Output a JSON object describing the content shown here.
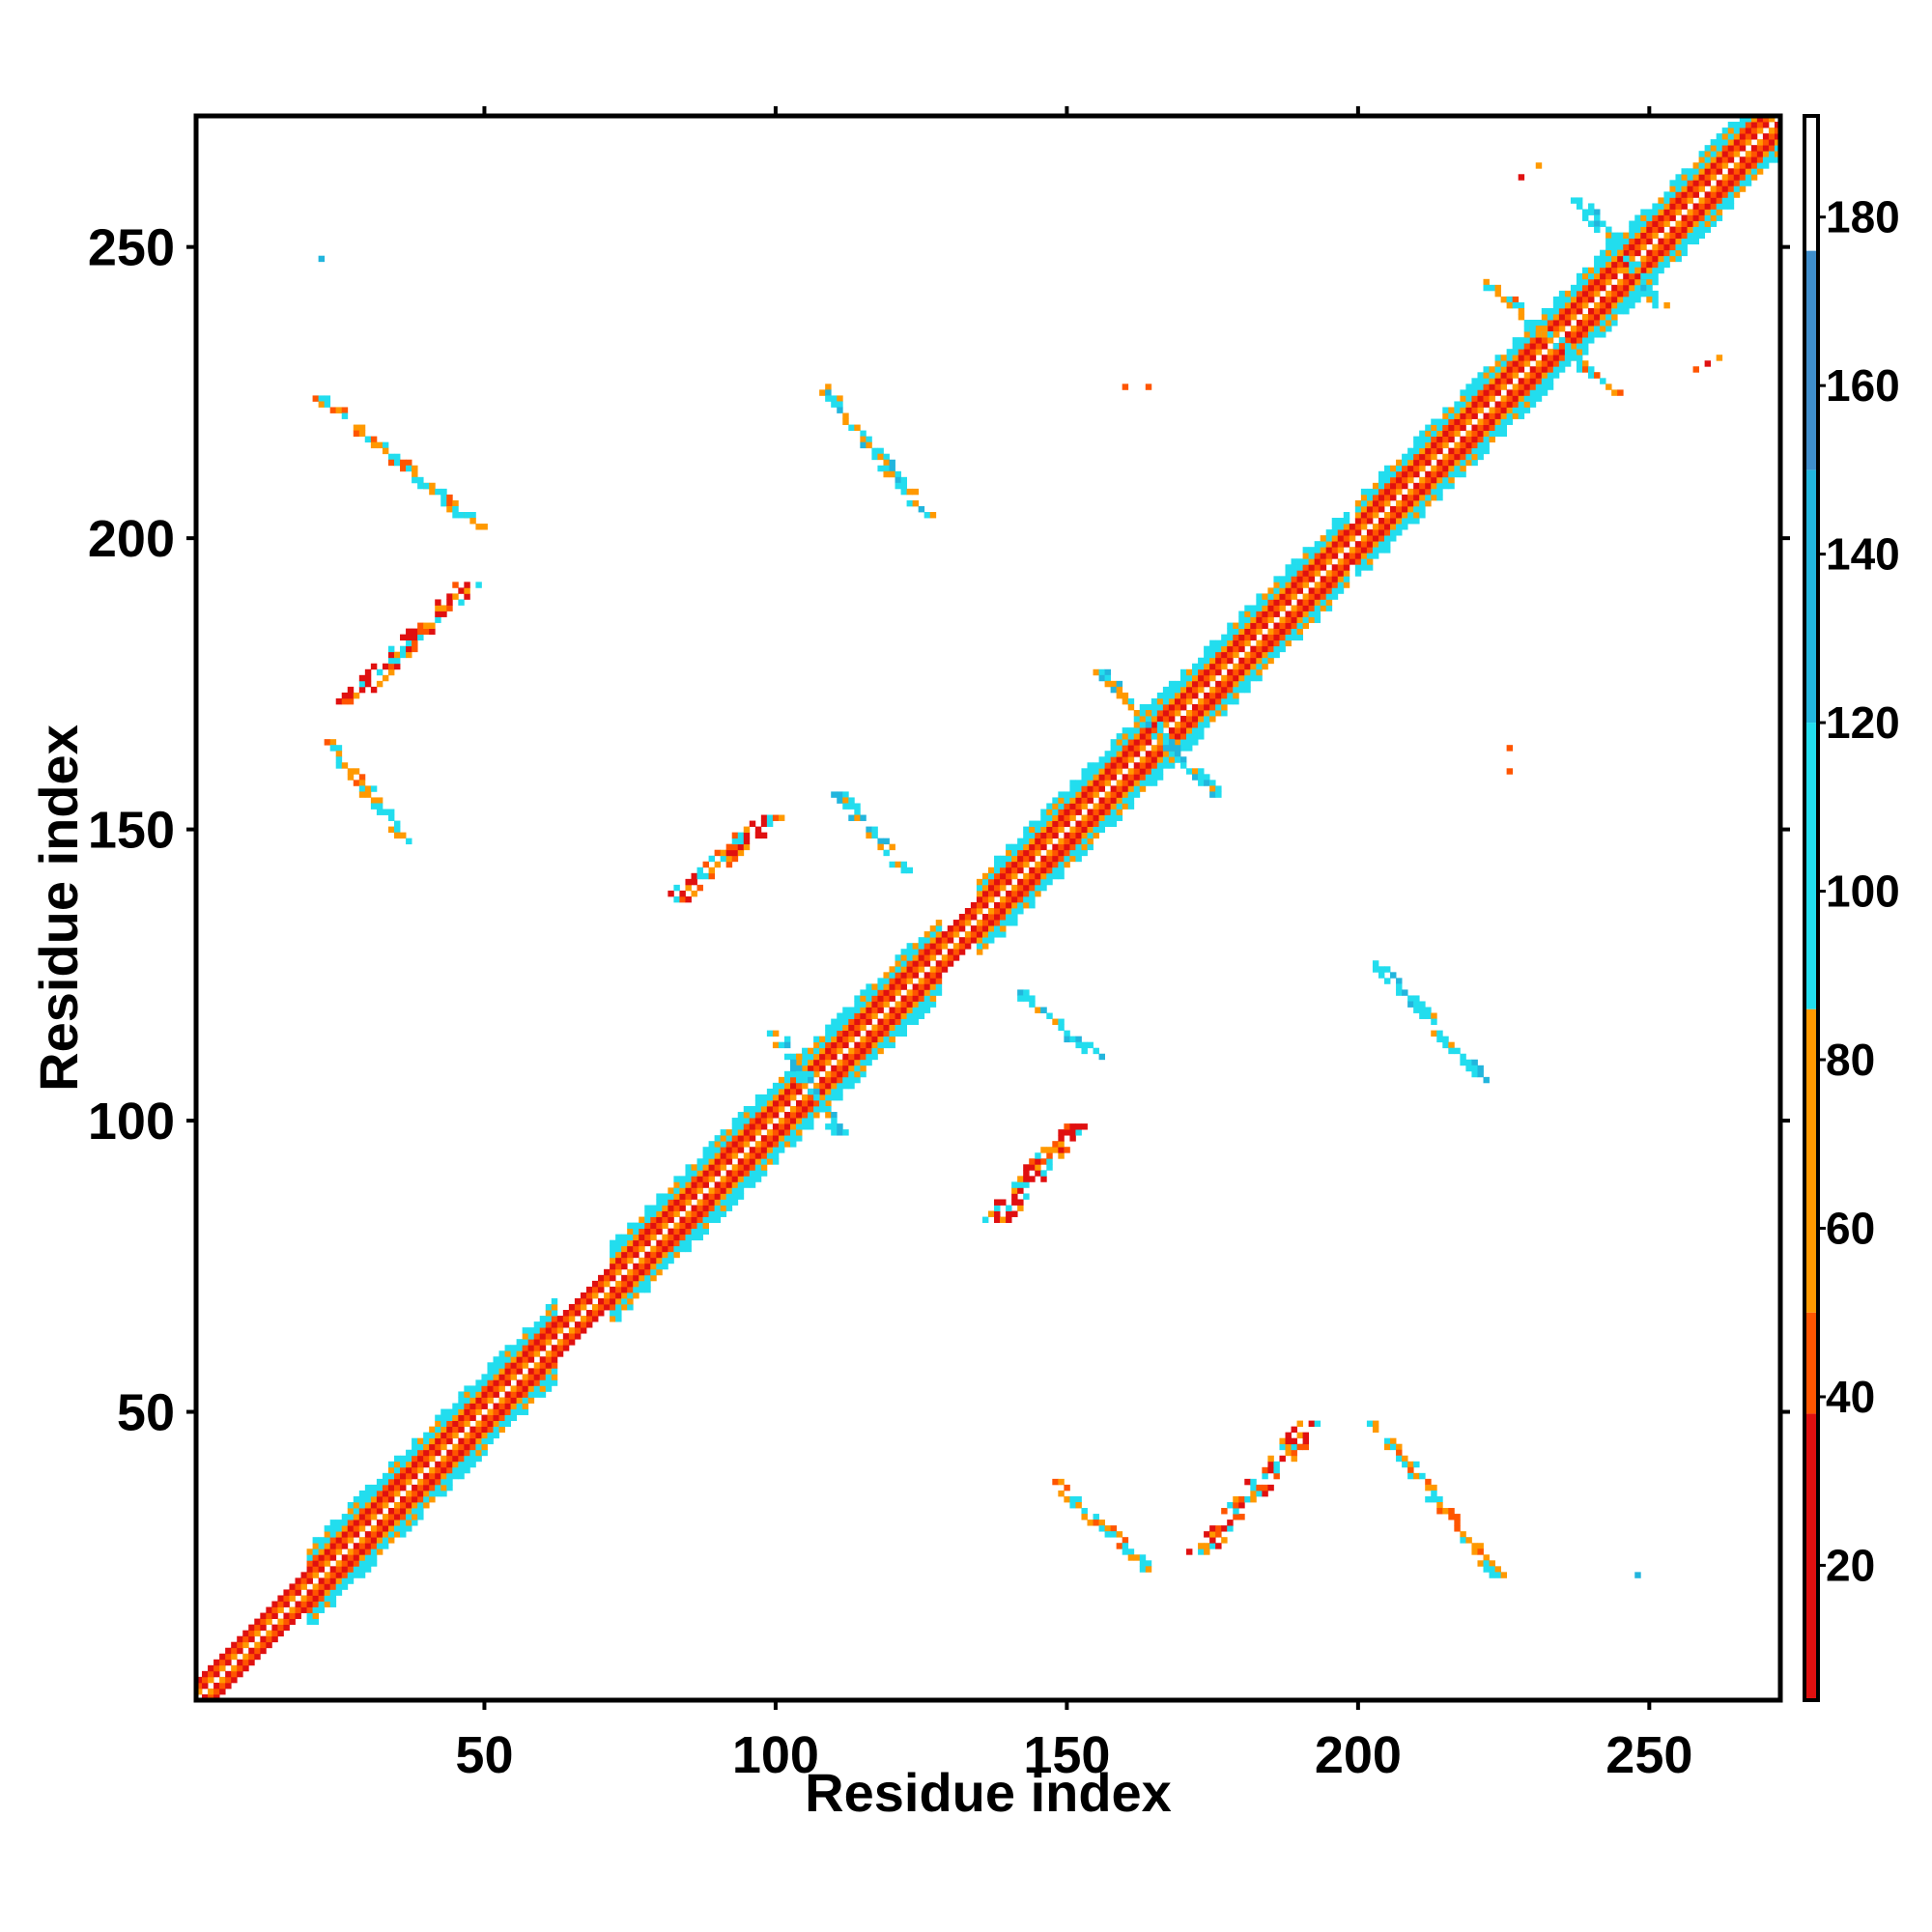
{
  "chart_data": {
    "type": "heatmap",
    "xlabel": "Residue index",
    "ylabel": "Residue index",
    "xlim": [
      1,
      272
    ],
    "ylim": [
      1,
      272
    ],
    "xticks": [
      50,
      100,
      150,
      200,
      250
    ],
    "yticks": [
      50,
      100,
      150,
      200,
      250
    ],
    "colorbar": {
      "range": [
        4,
        192
      ],
      "ticks": [
        20,
        40,
        60,
        80,
        100,
        120,
        140,
        160,
        180
      ],
      "bands": [
        {
          "from": 4,
          "to": 38,
          "color": "#e01010"
        },
        {
          "from": 38,
          "to": 50,
          "color": "#ff5500"
        },
        {
          "from": 50,
          "to": 86,
          "color": "#ff9900"
        },
        {
          "from": 86,
          "to": 120,
          "color": "#22ddee"
        },
        {
          "from": 120,
          "to": 150,
          "color": "#22b5dd"
        },
        {
          "from": 150,
          "to": 176,
          "color": "#3f8ecc"
        },
        {
          "from": 176,
          "to": 192,
          "color": "#ffffff"
        }
      ]
    },
    "diagonal": {
      "from": 1,
      "to": 272,
      "width": 7
    },
    "diagonal_wide_segments": [
      [
        20,
        62
      ],
      [
        72,
        128
      ],
      [
        135,
        198
      ],
      [
        200,
        272
      ]
    ],
    "contact_regions": [
      {
        "name": "antiparallel",
        "x": [
          22,
          49
        ],
        "y": [
          224,
          202
        ],
        "color": "#ff9900"
      },
      {
        "name": "parallel",
        "x": [
          27,
          47
        ],
        "y": [
          172,
          192
        ],
        "color": "#e01010"
      },
      {
        "name": "antiparallel",
        "x": [
          23,
          37
        ],
        "y": [
          165,
          148
        ],
        "color": "#ff9900"
      },
      {
        "name": "antiparallel",
        "x": [
          108,
          126
        ],
        "y": [
          226,
          204
        ],
        "color": "#22ddee"
      },
      {
        "name": "parallel",
        "x": [
          83,
          99
        ],
        "y": [
          138,
          152
        ],
        "color": "#e01010"
      },
      {
        "name": "antiparallel",
        "x": [
          111,
          122
        ],
        "y": [
          156,
          143
        ],
        "color": "#22ddee"
      },
      {
        "name": "parallel",
        "x": [
          138,
          151
        ],
        "y": [
          83,
          99
        ],
        "color": "#e01010"
      },
      {
        "name": "antiparallel",
        "x": [
          142,
          155
        ],
        "y": [
          122,
          111
        ],
        "color": "#22ddee"
      },
      {
        "name": "antiparallel",
        "x": [
          203,
          222
        ],
        "y": [
          127,
          107
        ],
        "color": "#22ddee"
      },
      {
        "name": "antiparallel",
        "x": [
          148,
          164
        ],
        "y": [
          38,
          23
        ],
        "color": "#ff9900"
      },
      {
        "name": "parallel",
        "x": [
          173,
          192
        ],
        "y": [
          26,
          48
        ],
        "color": "#e01010"
      },
      {
        "name": "antiparallel",
        "x": [
          202,
          224
        ],
        "y": [
          49,
          22
        ],
        "color": "#ff9900"
      },
      {
        "name": "antiparallel",
        "x": [
          156,
          176
        ],
        "y": [
          177,
          156
        ],
        "color": "#22ddee"
      },
      {
        "name": "antiparallel",
        "x": [
          100,
          111
        ],
        "y": [
          115,
          98
        ],
        "color": "#22ddee"
      },
      {
        "name": "antiparallel",
        "x": [
          238,
          252
        ],
        "y": [
          258,
          240
        ],
        "color": "#22ddee"
      },
      {
        "name": "antiparallel",
        "x": [
          222,
          244
        ],
        "y": [
          244,
          225
        ],
        "color": "#ff9900"
      }
    ],
    "isolated_contacts": [
      {
        "x": 22,
        "y": 248,
        "color": "#22b5dd"
      },
      {
        "x": 248,
        "y": 22,
        "color": "#22b5dd"
      },
      {
        "x": 160,
        "y": 226,
        "color": "#ff5500"
      },
      {
        "x": 164,
        "y": 226,
        "color": "#ff5500"
      },
      {
        "x": 226,
        "y": 160,
        "color": "#ff5500"
      },
      {
        "x": 226,
        "y": 164,
        "color": "#ff5500"
      },
      {
        "x": 228,
        "y": 262,
        "color": "#e01010"
      },
      {
        "x": 231,
        "y": 264,
        "color": "#ff9900"
      },
      {
        "x": 260,
        "y": 230,
        "color": "#e01010"
      },
      {
        "x": 262,
        "y": 231,
        "color": "#ff9900"
      },
      {
        "x": 258,
        "y": 229,
        "color": "#ff5500"
      }
    ]
  }
}
